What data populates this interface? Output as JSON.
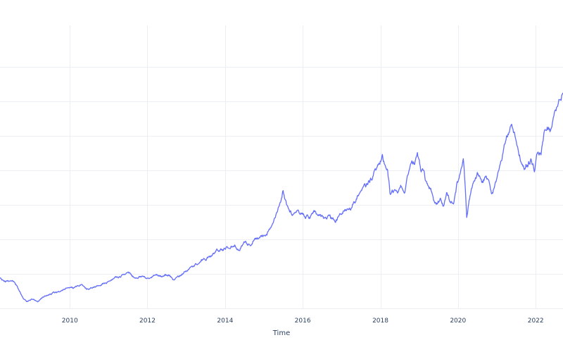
{
  "chart_data": {
    "type": "line",
    "title": "",
    "xlabel": "Time",
    "ylabel": "",
    "x_type": "date",
    "xlim": [
      "2008-03-15",
      "2022-09-15"
    ],
    "ylim": [
      0,
      8
    ],
    "x_ticks": [
      "2010",
      "2012",
      "2014",
      "2016",
      "2018",
      "2020",
      "2022"
    ],
    "x_tick_values": [
      "2010-01-01",
      "2012-01-01",
      "2014-01-01",
      "2016-01-01",
      "2018-01-01",
      "2020-01-01",
      "2022-01-01"
    ],
    "y_grid_values": [
      1,
      2,
      3,
      4,
      5,
      6,
      7
    ],
    "y_tick_labels_visible": false,
    "grid": true,
    "legend": "none",
    "series": [
      {
        "color": "#636efa",
        "points": [
          [
            "2008-03-15",
            0.85
          ],
          [
            "2008-05-01",
            0.78
          ],
          [
            "2008-06-10",
            0.83
          ],
          [
            "2008-07-15",
            0.78
          ],
          [
            "2008-08-20",
            0.65
          ],
          [
            "2008-09-20",
            0.48
          ],
          [
            "2008-10-20",
            0.3
          ],
          [
            "2008-11-20",
            0.21
          ],
          [
            "2009-01-15",
            0.27
          ],
          [
            "2009-03-05",
            0.22
          ],
          [
            "2009-04-20",
            0.32
          ],
          [
            "2009-06-15",
            0.4
          ],
          [
            "2009-08-15",
            0.47
          ],
          [
            "2009-10-15",
            0.52
          ],
          [
            "2009-12-15",
            0.6
          ],
          [
            "2010-02-01",
            0.57
          ],
          [
            "2010-04-20",
            0.66
          ],
          [
            "2010-06-15",
            0.55
          ],
          [
            "2010-08-15",
            0.62
          ],
          [
            "2010-10-15",
            0.7
          ],
          [
            "2010-12-15",
            0.75
          ],
          [
            "2011-02-15",
            0.85
          ],
          [
            "2011-04-15",
            0.92
          ],
          [
            "2011-06-01",
            0.98
          ],
          [
            "2011-07-15",
            1.03
          ],
          [
            "2011-09-01",
            0.87
          ],
          [
            "2011-11-01",
            0.93
          ],
          [
            "2012-01-15",
            0.9
          ],
          [
            "2012-03-15",
            0.96
          ],
          [
            "2012-05-20",
            0.92
          ],
          [
            "2012-07-15",
            0.98
          ],
          [
            "2012-09-01",
            0.83
          ],
          [
            "2012-11-15",
            0.97
          ],
          [
            "2013-01-15",
            1.12
          ],
          [
            "2013-03-15",
            1.25
          ],
          [
            "2013-05-20",
            1.38
          ],
          [
            "2013-07-15",
            1.45
          ],
          [
            "2013-09-01",
            1.55
          ],
          [
            "2013-10-15",
            1.68
          ],
          [
            "2013-12-15",
            1.7
          ],
          [
            "2014-02-01",
            1.78
          ],
          [
            "2014-04-01",
            1.84
          ],
          [
            "2014-05-15",
            1.72
          ],
          [
            "2014-07-01",
            1.95
          ],
          [
            "2014-08-15",
            1.85
          ],
          [
            "2014-10-15",
            2.02
          ],
          [
            "2014-12-15",
            2.1
          ],
          [
            "2015-02-01",
            2.18
          ],
          [
            "2015-03-15",
            2.45
          ],
          [
            "2015-04-15",
            2.6
          ],
          [
            "2015-05-15",
            2.85
          ],
          [
            "2015-06-15",
            3.2
          ],
          [
            "2015-07-01",
            3.4
          ],
          [
            "2015-08-01",
            3.0
          ],
          [
            "2015-09-01",
            2.78
          ],
          [
            "2015-10-01",
            2.75
          ],
          [
            "2015-11-01",
            2.88
          ],
          [
            "2015-12-15",
            2.78
          ],
          [
            "2016-01-15",
            2.7
          ],
          [
            "2016-03-01",
            2.65
          ],
          [
            "2016-04-15",
            2.78
          ],
          [
            "2016-06-01",
            2.68
          ],
          [
            "2016-07-15",
            2.6
          ],
          [
            "2016-09-01",
            2.7
          ],
          [
            "2016-11-01",
            2.5
          ],
          [
            "2016-12-15",
            2.72
          ],
          [
            "2017-02-01",
            2.88
          ],
          [
            "2017-04-01",
            3.0
          ],
          [
            "2017-05-15",
            3.18
          ],
          [
            "2017-07-01",
            3.35
          ],
          [
            "2017-08-15",
            3.5
          ],
          [
            "2017-10-01",
            3.72
          ],
          [
            "2017-11-15",
            3.95
          ],
          [
            "2017-12-15",
            4.1
          ],
          [
            "2018-01-20",
            4.5
          ],
          [
            "2018-02-20",
            4.1
          ],
          [
            "2018-03-10",
            4.05
          ],
          [
            "2018-04-01",
            3.35
          ],
          [
            "2018-05-01",
            3.4
          ],
          [
            "2018-06-15",
            3.38
          ],
          [
            "2018-07-15",
            3.52
          ],
          [
            "2018-08-15",
            3.45
          ],
          [
            "2018-09-15",
            3.8
          ],
          [
            "2018-10-15",
            4.2
          ],
          [
            "2018-11-15",
            4.22
          ],
          [
            "2018-12-15",
            4.4
          ],
          [
            "2019-01-15",
            4.0
          ],
          [
            "2019-02-15",
            3.9
          ],
          [
            "2019-03-15",
            3.55
          ],
          [
            "2019-04-20",
            3.4
          ],
          [
            "2019-05-20",
            3.05
          ],
          [
            "2019-06-20",
            3.0
          ],
          [
            "2019-07-20",
            3.15
          ],
          [
            "2019-08-20",
            2.95
          ],
          [
            "2019-09-20",
            3.3
          ],
          [
            "2019-10-20",
            3.05
          ],
          [
            "2019-11-20",
            3.05
          ],
          [
            "2019-12-20",
            3.55
          ],
          [
            "2020-01-20",
            3.85
          ],
          [
            "2020-02-20",
            4.25
          ],
          [
            "2020-03-10",
            3.5
          ],
          [
            "2020-03-23",
            2.6
          ],
          [
            "2020-04-15",
            3.2
          ],
          [
            "2020-05-20",
            3.55
          ],
          [
            "2020-07-01",
            3.85
          ],
          [
            "2020-08-15",
            3.55
          ],
          [
            "2020-09-15",
            3.8
          ],
          [
            "2020-10-15",
            3.7
          ],
          [
            "2020-11-15",
            3.3
          ],
          [
            "2020-12-15",
            3.55
          ],
          [
            "2021-01-15",
            3.95
          ],
          [
            "2021-02-15",
            4.35
          ],
          [
            "2021-03-15",
            4.7
          ],
          [
            "2021-04-15",
            5.1
          ],
          [
            "2021-05-15",
            5.35
          ],
          [
            "2021-06-15",
            5.0
          ],
          [
            "2021-07-15",
            4.7
          ],
          [
            "2021-08-15",
            4.3
          ],
          [
            "2021-09-15",
            4.1
          ],
          [
            "2021-10-15",
            4.15
          ],
          [
            "2021-11-20",
            4.3
          ],
          [
            "2021-12-20",
            4.0
          ],
          [
            "2022-01-20",
            4.6
          ],
          [
            "2022-02-20",
            4.45
          ],
          [
            "2022-03-20",
            5.0
          ],
          [
            "2022-04-20",
            5.3
          ],
          [
            "2022-05-20",
            5.1
          ],
          [
            "2022-06-20",
            5.55
          ],
          [
            "2022-07-20",
            5.85
          ],
          [
            "2022-08-20",
            6.05
          ],
          [
            "2022-09-15",
            6.25
          ]
        ]
      }
    ]
  }
}
